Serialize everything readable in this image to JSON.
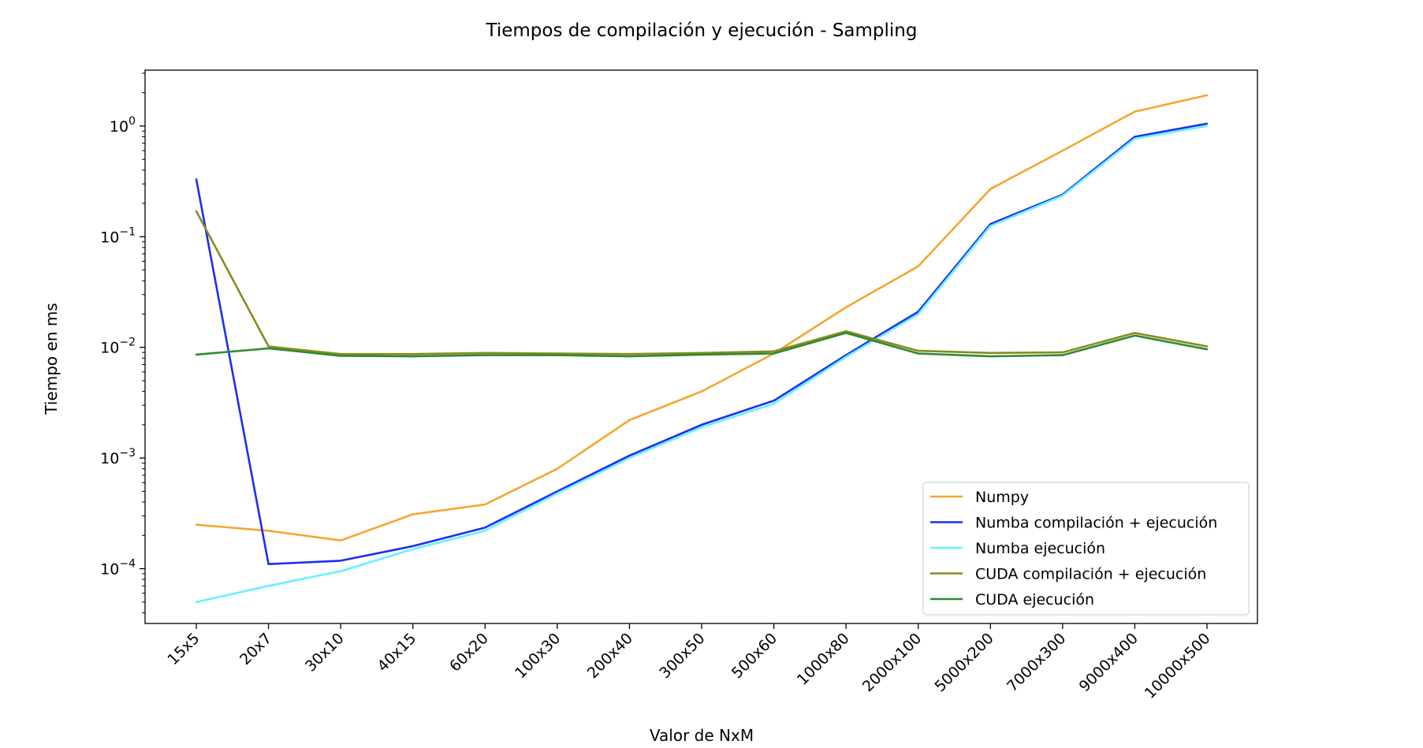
{
  "chart_data": {
    "type": "line",
    "title": "Tiempos de compilación y ejecución - Sampling",
    "xlabel": "Valor de NxM",
    "ylabel": "Tiempo en ms",
    "yscale": "log",
    "ylim": [
      3.2e-05,
      3.2
    ],
    "yticks": [
      {
        "value": 0.0001,
        "base": "10",
        "exp": "−4"
      },
      {
        "value": 0.001,
        "base": "10",
        "exp": "−3"
      },
      {
        "value": 0.01,
        "base": "10",
        "exp": "−2"
      },
      {
        "value": 0.1,
        "base": "10",
        "exp": "−1"
      },
      {
        "value": 1,
        "base": "10",
        "exp": "0"
      }
    ],
    "categories": [
      "15x5",
      "20x7",
      "30x10",
      "40x15",
      "60x20",
      "100x30",
      "200x40",
      "300x50",
      "500x60",
      "1000x80",
      "2000x100",
      "5000x200",
      "7000x300",
      "9000x400",
      "10000x500"
    ],
    "legend_position": "lower right",
    "grid": false,
    "series": [
      {
        "name": "Numpy",
        "color": "#f4a630",
        "values": [
          0.00025,
          0.00022,
          0.00018,
          0.00031,
          0.00038,
          0.0008,
          0.0022,
          0.004,
          0.0088,
          0.023,
          0.054,
          0.27,
          0.6,
          1.35,
          1.9
        ]
      },
      {
        "name": "Numba compilación + ejecución",
        "color": "#1b2ef0",
        "values": [
          0.33,
          0.00011,
          0.000118,
          0.00016,
          0.000235,
          0.0005,
          0.00105,
          0.002,
          0.0033,
          0.0085,
          0.021,
          0.13,
          0.24,
          0.8,
          1.05
        ]
      },
      {
        "name": "Numba ejecución",
        "color": "#66f2ff",
        "values": [
          5e-05,
          7e-05,
          9.5e-05,
          0.00015,
          0.00022,
          0.00048,
          0.001,
          0.0019,
          0.0031,
          0.0082,
          0.02,
          0.125,
          0.235,
          0.77,
          1.0
        ]
      },
      {
        "name": "CUDA compilación + ejecución",
        "color": "#8a8a20",
        "values": [
          0.17,
          0.0102,
          0.0087,
          0.0087,
          0.0089,
          0.0088,
          0.0087,
          0.0089,
          0.0092,
          0.014,
          0.0093,
          0.0089,
          0.009,
          0.0135,
          0.0102
        ]
      },
      {
        "name": "CUDA ejecución",
        "color": "#2e8b2e",
        "values": [
          0.0086,
          0.0098,
          0.0084,
          0.0083,
          0.0085,
          0.0085,
          0.0083,
          0.0086,
          0.0088,
          0.0135,
          0.0088,
          0.0083,
          0.0085,
          0.0128,
          0.0096
        ]
      }
    ]
  }
}
